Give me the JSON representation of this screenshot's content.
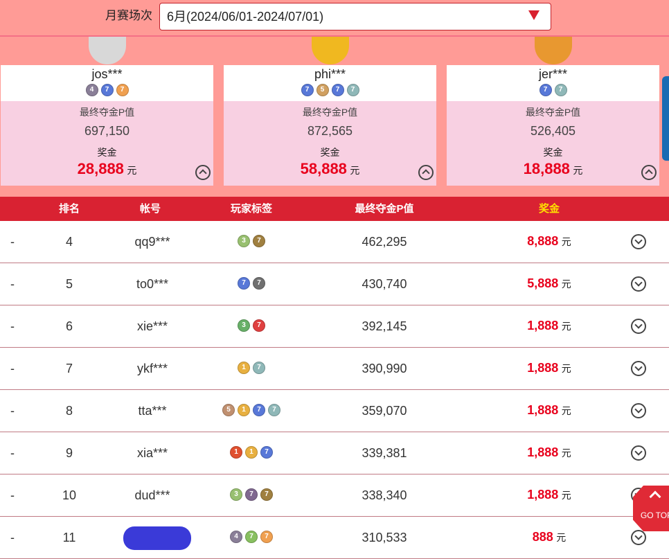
{
  "filter": {
    "label": "月赛场次",
    "selected": "6月(2024/06/01-2024/07/01)"
  },
  "top3": [
    {
      "rank": 2,
      "name": "jos***",
      "badges": [
        {
          "t": "4",
          "c": "#8a7f98"
        },
        {
          "t": "7",
          "c": "#5878d8"
        },
        {
          "t": "7",
          "c": "#f0a050"
        }
      ],
      "p_label": "最终夺金P值",
      "p": "697,150",
      "prize_label": "奖金",
      "prize": "28,888",
      "unit": "元"
    },
    {
      "rank": 1,
      "name": "phi***",
      "badges": [
        {
          "t": "7",
          "c": "#5878d8"
        },
        {
          "t": "5",
          "c": "#d0a060"
        },
        {
          "t": "7",
          "c": "#5878d8"
        },
        {
          "t": "7",
          "c": "#8fb8b8"
        }
      ],
      "p_label": "最终夺金P值",
      "p": "872,565",
      "prize_label": "奖金",
      "prize": "58,888",
      "unit": "元"
    },
    {
      "rank": 3,
      "name": "jer***",
      "badges": [
        {
          "t": "7",
          "c": "#5878d8"
        },
        {
          "t": "7",
          "c": "#8fb8b8"
        }
      ],
      "p_label": "最终夺金P值",
      "p": "526,405",
      "prize_label": "奖金",
      "prize": "18,888",
      "unit": "元"
    }
  ],
  "table": {
    "headers": [
      "排名",
      "帐号",
      "玩家标签",
      "最终夺金P值",
      "奖金"
    ],
    "rows": [
      {
        "mark": "-",
        "rank": "4",
        "name": "qq9***",
        "badges": [
          {
            "t": "3",
            "c": "#98c070"
          },
          {
            "t": "7",
            "c": "#a08040"
          }
        ],
        "p": "462,295",
        "prize": "8,888",
        "unit": "元"
      },
      {
        "mark": "-",
        "rank": "5",
        "name": "to0***",
        "badges": [
          {
            "t": "7",
            "c": "#5878d8"
          },
          {
            "t": "7",
            "c": "#707070"
          }
        ],
        "p": "430,740",
        "prize": "5,888",
        "unit": "元"
      },
      {
        "mark": "-",
        "rank": "6",
        "name": "xie***",
        "badges": [
          {
            "t": "3",
            "c": "#68b068"
          },
          {
            "t": "7",
            "c": "#e04040"
          }
        ],
        "p": "392,145",
        "prize": "1,888",
        "unit": "元"
      },
      {
        "mark": "-",
        "rank": "7",
        "name": "ykf***",
        "badges": [
          {
            "t": "1",
            "c": "#e8b040"
          },
          {
            "t": "7",
            "c": "#8fb8b8"
          }
        ],
        "p": "390,990",
        "prize": "1,888",
        "unit": "元"
      },
      {
        "mark": "-",
        "rank": "8",
        "name": "tta***",
        "badges": [
          {
            "t": "5",
            "c": "#c09070"
          },
          {
            "t": "1",
            "c": "#e8b040"
          },
          {
            "t": "7",
            "c": "#5878d8"
          },
          {
            "t": "7",
            "c": "#8fb8b8"
          }
        ],
        "p": "359,070",
        "prize": "1,888",
        "unit": "元"
      },
      {
        "mark": "-",
        "rank": "9",
        "name": "xia***",
        "badges": [
          {
            "t": "1",
            "c": "#e05030"
          },
          {
            "t": "1",
            "c": "#e8b040"
          },
          {
            "t": "7",
            "c": "#5878d8"
          }
        ],
        "p": "339,381",
        "prize": "1,888",
        "unit": "元"
      },
      {
        "mark": "-",
        "rank": "10",
        "name": "dud***",
        "badges": [
          {
            "t": "3",
            "c": "#98c070"
          },
          {
            "t": "7",
            "c": "#806890"
          },
          {
            "t": "7",
            "c": "#a08040"
          }
        ],
        "p": "338,340",
        "prize": "1,888",
        "unit": "元"
      },
      {
        "mark": "-",
        "rank": "11",
        "name": "",
        "badges": [
          {
            "t": "4",
            "c": "#8a7f98"
          },
          {
            "t": "7",
            "c": "#88c060"
          },
          {
            "t": "7",
            "c": "#f0a050"
          }
        ],
        "p": "310,533",
        "prize": "888",
        "unit": "元"
      }
    ]
  },
  "go_top": "GO TOP",
  "colors": {
    "header": "#d92232",
    "prize": "#e8001c",
    "prize_header": "#ffe000"
  }
}
